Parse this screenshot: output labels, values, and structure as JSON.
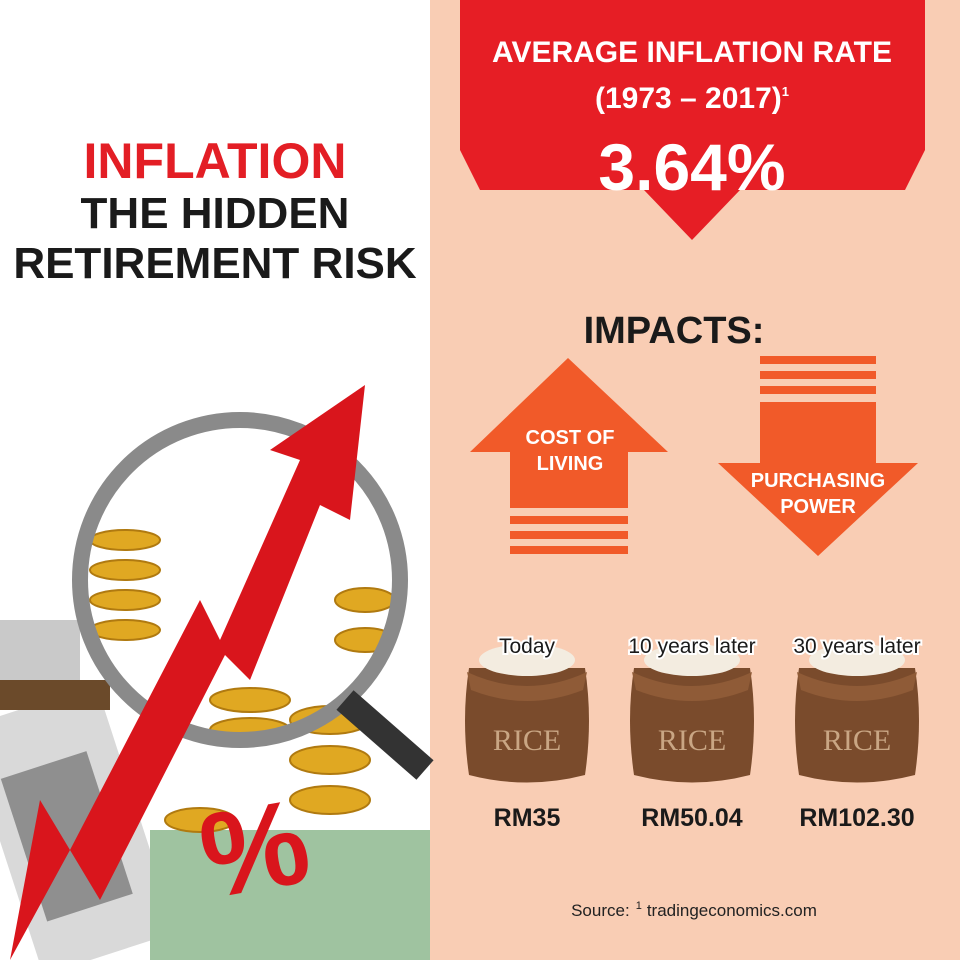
{
  "left": {
    "title": "INFLATION",
    "subtitle_lines": [
      "THE HIDDEN",
      "RETIREMENT RISK"
    ]
  },
  "banner": {
    "heading": "AVERAGE INFLATION RATE",
    "period": "(1973 – 2017)",
    "footnote_mark": "1",
    "rate": "3.64%"
  },
  "impacts": {
    "heading": "IMPACTS:",
    "up": {
      "lines": [
        "COST OF",
        "LIVING"
      ]
    },
    "down": {
      "lines": [
        "PURCHASING",
        "POWER"
      ]
    }
  },
  "rice": {
    "bag_label": "RICE",
    "items": [
      {
        "when": "Today",
        "price": "RM35"
      },
      {
        "when": "10 years later",
        "price": "RM50.04"
      },
      {
        "when": "30 years later",
        "price": "RM102.30"
      }
    ]
  },
  "illustration": {
    "symbol": "%"
  },
  "source": {
    "label": "Source:",
    "footnote_mark": "1",
    "site": "tradingeconomics.com"
  }
}
